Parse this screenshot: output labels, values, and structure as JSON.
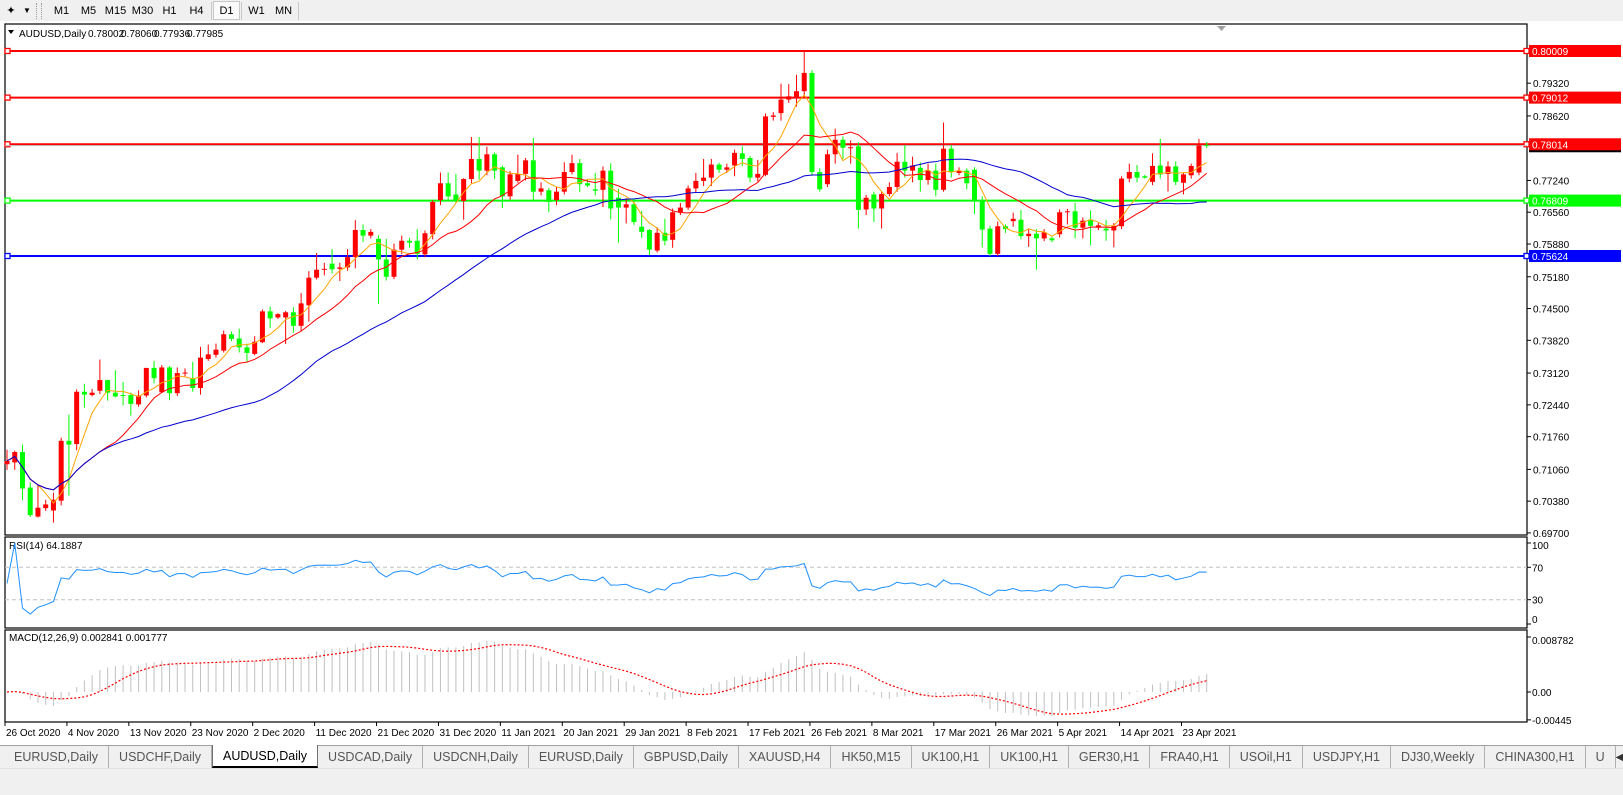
{
  "toolbar": {
    "timeframes": [
      "M1",
      "M5",
      "M15",
      "M30",
      "H1",
      "H4",
      "D1",
      "W1",
      "MN"
    ],
    "active_timeframe": "D1"
  },
  "chart": {
    "symbol": "AUDUSD,Daily",
    "open": "0.78002",
    "high": "0.78060",
    "low": "0.77936",
    "close": "0.77985",
    "bullish_color": "#ff0000",
    "bearish_color": "#00ff00",
    "price_ticks": [
      "0.79320",
      "0.78620",
      "0.77240",
      "0.76560",
      "0.75880",
      "0.75180",
      "0.74500",
      "0.73820",
      "0.73120",
      "0.72440",
      "0.71760",
      "0.71060",
      "0.70380",
      "0.69700"
    ],
    "horizontal_lines": [
      {
        "price": "0.80009",
        "color": "#ff0000"
      },
      {
        "price": "0.79012",
        "color": "#ff0000"
      },
      {
        "price": "0.78014",
        "color": "#ff0000"
      },
      {
        "price": "0.76809",
        "color": "#00ff00"
      },
      {
        "price": "0.75624",
        "color": "#0000ff"
      }
    ],
    "date_labels": [
      "26 Oct 2020",
      "4 Nov 2020",
      "13 Nov 2020",
      "23 Nov 2020",
      "2 Dec 2020",
      "11 Dec 2020",
      "21 Dec 2020",
      "31 Dec 2020",
      "11 Jan 2021",
      "20 Jan 2021",
      "29 Jan 2021",
      "8 Feb 2021",
      "17 Feb 2021",
      "26 Feb 2021",
      "8 Mar 2021",
      "17 Mar 2021",
      "26 Mar 2021",
      "5 Apr 2021",
      "14 Apr 2021",
      "23 Apr 2021"
    ],
    "ma_colors": [
      "#ffa500",
      "#ff0000",
      "#0000cd"
    ],
    "candles_ohlc": [
      [
        0.7117,
        0.7148,
        0.7105,
        0.7124
      ],
      [
        0.7121,
        0.7146,
        0.7105,
        0.7143
      ],
      [
        0.7143,
        0.7159,
        0.704,
        0.7065
      ],
      [
        0.7067,
        0.7078,
        0.7004,
        0.7008
      ],
      [
        0.7005,
        0.7072,
        0.7003,
        0.7024
      ],
      [
        0.7023,
        0.7041,
        0.7017,
        0.7031
      ],
      [
        0.7018,
        0.7056,
        0.6992,
        0.7041
      ],
      [
        0.7039,
        0.7174,
        0.7029,
        0.7167
      ],
      [
        0.7167,
        0.7223,
        0.705,
        0.7159
      ],
      [
        0.716,
        0.7277,
        0.7147,
        0.7272
      ],
      [
        0.7272,
        0.7289,
        0.7238,
        0.7266
      ],
      [
        0.7265,
        0.7278,
        0.7262,
        0.727
      ],
      [
        0.7274,
        0.7341,
        0.7267,
        0.7297
      ],
      [
        0.7297,
        0.7298,
        0.7253,
        0.727
      ],
      [
        0.727,
        0.7318,
        0.726,
        0.7262
      ],
      [
        0.7265,
        0.7293,
        0.7243,
        0.7264
      ],
      [
        0.7265,
        0.727,
        0.7221,
        0.7246
      ],
      [
        0.7245,
        0.7275,
        0.724,
        0.7264
      ],
      [
        0.7264,
        0.7323,
        0.726,
        0.7323
      ],
      [
        0.7323,
        0.7338,
        0.729,
        0.7301
      ],
      [
        0.7271,
        0.7329,
        0.727,
        0.7324
      ],
      [
        0.7324,
        0.7327,
        0.7254,
        0.7269
      ],
      [
        0.7269,
        0.7324,
        0.7263,
        0.7312
      ],
      [
        0.7311,
        0.7322,
        0.7305,
        0.7313
      ],
      [
        0.73,
        0.7336,
        0.7272,
        0.728
      ],
      [
        0.728,
        0.7368,
        0.7266,
        0.7345
      ],
      [
        0.7342,
        0.7373,
        0.7338,
        0.7352
      ],
      [
        0.7351,
        0.7375,
        0.7345,
        0.7362
      ],
      [
        0.736,
        0.7403,
        0.7356,
        0.7395
      ],
      [
        0.7395,
        0.7401,
        0.738,
        0.7385
      ],
      [
        0.7386,
        0.7407,
        0.7356,
        0.7367
      ],
      [
        0.7367,
        0.7375,
        0.7336,
        0.7355
      ],
      [
        0.7353,
        0.7391,
        0.735,
        0.7379
      ],
      [
        0.7378,
        0.7448,
        0.7376,
        0.7444
      ],
      [
        0.7444,
        0.7454,
        0.7408,
        0.7429
      ],
      [
        0.7431,
        0.744,
        0.7428,
        0.7438
      ],
      [
        0.7431,
        0.7445,
        0.7374,
        0.7442
      ],
      [
        0.7442,
        0.7453,
        0.7398,
        0.7413
      ],
      [
        0.7413,
        0.7483,
        0.7402,
        0.7461
      ],
      [
        0.7457,
        0.753,
        0.7422,
        0.7516
      ],
      [
        0.7516,
        0.7569,
        0.7512,
        0.7533
      ],
      [
        0.7533,
        0.7548,
        0.7521,
        0.7535
      ],
      [
        0.7546,
        0.7577,
        0.7525,
        0.7534
      ],
      [
        0.7535,
        0.7548,
        0.7509,
        0.7538
      ],
      [
        0.7538,
        0.7577,
        0.7531,
        0.756
      ],
      [
        0.756,
        0.7639,
        0.7536,
        0.7618
      ],
      [
        0.7618,
        0.763,
        0.7592,
        0.7606
      ],
      [
        0.7606,
        0.762,
        0.76,
        0.7614
      ],
      [
        0.7599,
        0.7607,
        0.746,
        0.7555
      ],
      [
        0.7555,
        0.7599,
        0.751,
        0.7518
      ],
      [
        0.7518,
        0.7589,
        0.7513,
        0.7576
      ],
      [
        0.7576,
        0.7606,
        0.7566,
        0.7595
      ],
      [
        0.7595,
        0.7601,
        0.758,
        0.7591
      ],
      [
        0.7595,
        0.762,
        0.7555,
        0.7567
      ],
      [
        0.7566,
        0.7617,
        0.756,
        0.7611
      ],
      [
        0.7609,
        0.7682,
        0.7598,
        0.7678
      ],
      [
        0.7682,
        0.7741,
        0.7671,
        0.7718
      ],
      [
        0.7718,
        0.7741,
        0.7683,
        0.769
      ],
      [
        0.7694,
        0.7738,
        0.7675,
        0.768
      ],
      [
        0.768,
        0.7729,
        0.764,
        0.7727
      ],
      [
        0.7727,
        0.7817,
        0.7718,
        0.777
      ],
      [
        0.777,
        0.7817,
        0.7726,
        0.7745
      ],
      [
        0.7745,
        0.7796,
        0.7735,
        0.778
      ],
      [
        0.778,
        0.7784,
        0.7727,
        0.7745
      ],
      [
        0.7752,
        0.7756,
        0.7665,
        0.769
      ],
      [
        0.769,
        0.7744,
        0.7683,
        0.7737
      ],
      [
        0.7723,
        0.7779,
        0.7719,
        0.7738
      ],
      [
        0.7738,
        0.7772,
        0.7724,
        0.7767
      ],
      [
        0.7767,
        0.7815,
        0.7682,
        0.77
      ],
      [
        0.77,
        0.772,
        0.7692,
        0.7707
      ],
      [
        0.7703,
        0.7708,
        0.7656,
        0.7678
      ],
      [
        0.7682,
        0.771,
        0.7671,
        0.77
      ],
      [
        0.77,
        0.7763,
        0.7694,
        0.7742
      ],
      [
        0.7742,
        0.7779,
        0.7737,
        0.7761
      ],
      [
        0.7761,
        0.777,
        0.7699,
        0.7716
      ],
      [
        0.7718,
        0.7726,
        0.771,
        0.7713
      ],
      [
        0.7705,
        0.774,
        0.7692,
        0.7702
      ],
      [
        0.7704,
        0.7754,
        0.7667,
        0.7745
      ],
      [
        0.7745,
        0.7761,
        0.7641,
        0.7664
      ],
      [
        0.7687,
        0.7706,
        0.7591,
        0.7666
      ],
      [
        0.7666,
        0.7686,
        0.7632,
        0.7673
      ],
      [
        0.7673,
        0.7684,
        0.7629,
        0.7635
      ],
      [
        0.7625,
        0.7659,
        0.7601,
        0.7614
      ],
      [
        0.7618,
        0.762,
        0.7564,
        0.7576
      ],
      [
        0.7574,
        0.7624,
        0.757,
        0.7612
      ],
      [
        0.7612,
        0.7642,
        0.7585,
        0.7595
      ],
      [
        0.7597,
        0.7664,
        0.758,
        0.7656
      ],
      [
        0.7656,
        0.7676,
        0.765,
        0.7666
      ],
      [
        0.7666,
        0.7713,
        0.7661,
        0.7707
      ],
      [
        0.7707,
        0.774,
        0.7698,
        0.7723
      ],
      [
        0.7723,
        0.777,
        0.7712,
        0.773
      ],
      [
        0.773,
        0.777,
        0.7712,
        0.7758
      ],
      [
        0.7758,
        0.7762,
        0.774,
        0.7747
      ],
      [
        0.7747,
        0.776,
        0.774,
        0.7752
      ],
      [
        0.7756,
        0.779,
        0.7733,
        0.7783
      ],
      [
        0.7782,
        0.7797,
        0.7755,
        0.777
      ],
      [
        0.7772,
        0.7776,
        0.772,
        0.773
      ],
      [
        0.773,
        0.7768,
        0.7722,
        0.7738
      ],
      [
        0.7736,
        0.7867,
        0.7733,
        0.7861
      ],
      [
        0.786,
        0.787,
        0.7852,
        0.7863
      ],
      [
        0.7868,
        0.7931,
        0.7852,
        0.7897
      ],
      [
        0.7897,
        0.793,
        0.789,
        0.7904
      ],
      [
        0.7901,
        0.795,
        0.7882,
        0.7915
      ],
      [
        0.7915,
        0.8003,
        0.79,
        0.7954
      ],
      [
        0.7954,
        0.796,
        0.7734,
        0.7742
      ],
      [
        0.7742,
        0.775,
        0.77,
        0.7705
      ],
      [
        0.7716,
        0.779,
        0.771,
        0.778
      ],
      [
        0.778,
        0.7835,
        0.776,
        0.7811
      ],
      [
        0.7811,
        0.7818,
        0.777,
        0.7794
      ],
      [
        0.7793,
        0.781,
        0.776,
        0.7795
      ],
      [
        0.7797,
        0.7806,
        0.7621,
        0.7661
      ],
      [
        0.7662,
        0.7693,
        0.765,
        0.7687
      ],
      [
        0.7694,
        0.77,
        0.7635,
        0.7664
      ],
      [
        0.7664,
        0.77,
        0.7621,
        0.7695
      ],
      [
        0.7695,
        0.772,
        0.769,
        0.771
      ],
      [
        0.771,
        0.7783,
        0.77,
        0.7764
      ],
      [
        0.7764,
        0.78,
        0.773,
        0.7745
      ],
      [
        0.7745,
        0.7775,
        0.772,
        0.7756
      ],
      [
        0.7751,
        0.7763,
        0.77,
        0.7725
      ],
      [
        0.7725,
        0.776,
        0.7715,
        0.7745
      ],
      [
        0.7745,
        0.776,
        0.769,
        0.7704
      ],
      [
        0.7704,
        0.7848,
        0.77,
        0.7792
      ],
      [
        0.7792,
        0.78,
        0.773,
        0.7742
      ],
      [
        0.774,
        0.7752,
        0.7735,
        0.7745
      ],
      [
        0.7745,
        0.775,
        0.7705,
        0.7718
      ],
      [
        0.7747,
        0.7752,
        0.7652,
        0.7682
      ],
      [
        0.7682,
        0.769,
        0.7581,
        0.7619
      ],
      [
        0.7621,
        0.7627,
        0.7562,
        0.7567
      ],
      [
        0.7567,
        0.7636,
        0.7562,
        0.7626
      ],
      [
        0.7626,
        0.763,
        0.7612,
        0.762
      ],
      [
        0.7637,
        0.7655,
        0.7625,
        0.7642
      ],
      [
        0.764,
        0.7661,
        0.7598,
        0.7605
      ],
      [
        0.7605,
        0.762,
        0.7582,
        0.761
      ],
      [
        0.761,
        0.762,
        0.7533,
        0.76
      ],
      [
        0.76,
        0.762,
        0.7594,
        0.7613
      ],
      [
        0.76,
        0.7606,
        0.7592,
        0.7596
      ],
      [
        0.7609,
        0.7662,
        0.7602,
        0.7656
      ],
      [
        0.7656,
        0.7663,
        0.763,
        0.7658
      ],
      [
        0.7658,
        0.7676,
        0.76,
        0.7623
      ],
      [
        0.7623,
        0.7645,
        0.76,
        0.7638
      ],
      [
        0.764,
        0.766,
        0.7585,
        0.7627
      ],
      [
        0.7623,
        0.7633,
        0.7618,
        0.7628
      ],
      [
        0.7621,
        0.764,
        0.7595,
        0.7617
      ],
      [
        0.7617,
        0.7633,
        0.7581,
        0.7627
      ],
      [
        0.7626,
        0.7733,
        0.762,
        0.7728
      ],
      [
        0.7728,
        0.776,
        0.772,
        0.7742
      ],
      [
        0.7742,
        0.7757,
        0.772,
        0.773
      ],
      [
        0.7733,
        0.7736,
        0.7728,
        0.773
      ],
      [
        0.7721,
        0.7782,
        0.7714,
        0.7755
      ],
      [
        0.7756,
        0.7813,
        0.7728,
        0.7737
      ],
      [
        0.7738,
        0.7765,
        0.77,
        0.7754
      ],
      [
        0.7754,
        0.7765,
        0.7714,
        0.7721
      ],
      [
        0.7719,
        0.774,
        0.7694,
        0.7737
      ],
      [
        0.7735,
        0.776,
        0.7728,
        0.7755
      ],
      [
        0.7741,
        0.7813,
        0.7735,
        0.7799
      ],
      [
        0.78002,
        0.7806,
        0.77936,
        0.77985
      ]
    ]
  },
  "rsi": {
    "label": "RSI(14) 64.1887",
    "levels": [
      70,
      30
    ],
    "axis_labels": [
      "100",
      "70",
      "30",
      "0"
    ],
    "line_color": "#1e90ff"
  },
  "macd": {
    "label": "MACD(12,26,9) 0.002841 0.001777",
    "axis_labels": [
      "0.008782",
      "0.00",
      "-0.00445"
    ],
    "histogram_color": "#c0c0c0",
    "signal_color": "#ff0000"
  },
  "tabs": {
    "items": [
      "EURUSD,Daily",
      "USDCHF,Daily",
      "AUDUSD,Daily",
      "USDCAD,Daily",
      "USDCNH,Daily",
      "EURUSD,Daily",
      "GBPUSD,Daily",
      "XAUUSD,H4",
      "HK50,M15",
      "UK100,H1",
      "UK100,H1",
      "GER30,H1",
      "FRA40,H1",
      "USOil,H1",
      "USDJPY,H1",
      "DJ30,Weekly",
      "CHINA300,H1",
      "U"
    ],
    "active": "AUDUSD,Daily"
  }
}
